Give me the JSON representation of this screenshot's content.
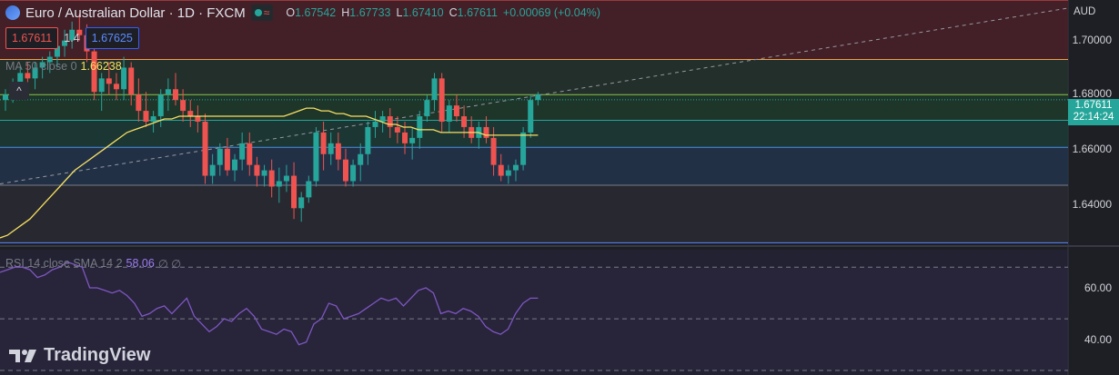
{
  "header": {
    "title": "Euro / Australian Dollar · 1D · FXCM",
    "ohlc": [
      {
        "k": "O",
        "v": "1.67542"
      },
      {
        "k": "H",
        "v": "1.67733"
      },
      {
        "k": "L",
        "v": "1.67410"
      },
      {
        "k": "C",
        "v": "1.67611"
      }
    ],
    "change": "+0.00069 (+0.04%)"
  },
  "trade": {
    "bid": "1.67611",
    "spread": "1.4",
    "ask": "1.67625"
  },
  "ma": {
    "label": "MA 50 close 0",
    "value": "1.66238"
  },
  "rsi": {
    "label": "RSI 14 close SMA 14 2",
    "value": "58.06",
    "extra": "∅ ∅"
  },
  "price_axis": {
    "currency": "AUD",
    "ticks": [
      "1.70000",
      "1.68000",
      "1.66000",
      "1.64000"
    ],
    "last_price": "1.67611",
    "countdown": "22:14:24"
  },
  "rsi_axis": {
    "ticks": [
      "60.00",
      "40.00"
    ]
  },
  "colors": {
    "bull": "#26a69a",
    "bear": "#ef5350",
    "ma": "#f7e061",
    "rsi": "#7e57c2"
  },
  "brand": "TradingView",
  "chart_data": {
    "type": "candlestick",
    "price_range": [
      1.623,
      1.713
    ],
    "candles": [
      [
        1.676,
        1.68,
        1.672,
        1.678
      ],
      [
        1.678,
        1.684,
        1.675,
        1.682
      ],
      [
        1.682,
        1.688,
        1.679,
        1.686
      ],
      [
        1.686,
        1.69,
        1.682,
        1.684
      ],
      [
        1.684,
        1.69,
        1.68,
        1.688
      ],
      [
        1.688,
        1.692,
        1.684,
        1.69
      ],
      [
        1.69,
        1.694,
        1.686,
        1.692
      ],
      [
        1.692,
        1.698,
        1.688,
        1.696
      ],
      [
        1.696,
        1.702,
        1.692,
        1.698
      ],
      [
        1.698,
        1.705,
        1.695,
        1.702
      ],
      [
        1.702,
        1.708,
        1.698,
        1.7
      ],
      [
        1.7,
        1.704,
        1.69,
        1.694
      ],
      [
        1.694,
        1.697,
        1.676,
        1.679
      ],
      [
        1.679,
        1.686,
        1.672,
        1.684
      ],
      [
        1.684,
        1.69,
        1.678,
        1.682
      ],
      [
        1.682,
        1.686,
        1.676,
        1.68
      ],
      [
        1.68,
        1.692,
        1.676,
        1.688
      ],
      [
        1.688,
        1.69,
        1.674,
        1.678
      ],
      [
        1.678,
        1.684,
        1.668,
        1.672
      ],
      [
        1.672,
        1.679,
        1.666,
        1.668
      ],
      [
        1.668,
        1.672,
        1.664,
        1.67
      ],
      [
        1.67,
        1.68,
        1.666,
        1.678
      ],
      [
        1.678,
        1.684,
        1.672,
        1.68
      ],
      [
        1.68,
        1.686,
        1.674,
        1.676
      ],
      [
        1.676,
        1.68,
        1.668,
        1.672
      ],
      [
        1.672,
        1.676,
        1.666,
        1.67
      ],
      [
        1.67,
        1.674,
        1.664,
        1.668
      ],
      [
        1.668,
        1.671,
        1.645,
        1.648
      ],
      [
        1.648,
        1.656,
        1.645,
        1.652
      ],
      [
        1.652,
        1.66,
        1.648,
        1.658
      ],
      [
        1.658,
        1.662,
        1.648,
        1.65
      ],
      [
        1.65,
        1.656,
        1.646,
        1.654
      ],
      [
        1.654,
        1.664,
        1.65,
        1.66
      ],
      [
        1.66,
        1.664,
        1.648,
        1.652
      ],
      [
        1.652,
        1.655,
        1.644,
        1.648
      ],
      [
        1.648,
        1.652,
        1.644,
        1.65
      ],
      [
        1.65,
        1.654,
        1.64,
        1.644
      ],
      [
        1.644,
        1.651,
        1.638,
        1.646
      ],
      [
        1.646,
        1.652,
        1.642,
        1.648
      ],
      [
        1.648,
        1.653,
        1.632,
        1.636
      ],
      [
        1.636,
        1.642,
        1.631,
        1.64
      ],
      [
        1.64,
        1.648,
        1.638,
        1.646
      ],
      [
        1.646,
        1.666,
        1.644,
        1.664
      ],
      [
        1.664,
        1.668,
        1.65,
        1.656
      ],
      [
        1.656,
        1.664,
        1.652,
        1.66
      ],
      [
        1.66,
        1.664,
        1.65,
        1.654
      ],
      [
        1.654,
        1.658,
        1.644,
        1.646
      ],
      [
        1.646,
        1.654,
        1.644,
        1.652
      ],
      [
        1.652,
        1.66,
        1.646,
        1.656
      ],
      [
        1.656,
        1.668,
        1.652,
        1.666
      ],
      [
        1.666,
        1.672,
        1.662,
        1.668
      ],
      [
        1.668,
        1.672,
        1.664,
        1.67
      ],
      [
        1.67,
        1.673,
        1.662,
        1.666
      ],
      [
        1.666,
        1.67,
        1.66,
        1.664
      ],
      [
        1.664,
        1.668,
        1.656,
        1.66
      ],
      [
        1.66,
        1.666,
        1.654,
        1.662
      ],
      [
        1.662,
        1.672,
        1.658,
        1.67
      ],
      [
        1.67,
        1.678,
        1.668,
        1.676
      ],
      [
        1.676,
        1.686,
        1.672,
        1.684
      ],
      [
        1.684,
        1.686,
        1.664,
        1.668
      ],
      [
        1.668,
        1.676,
        1.664,
        1.674
      ],
      [
        1.674,
        1.678,
        1.668,
        1.67
      ],
      [
        1.67,
        1.674,
        1.662,
        1.666
      ],
      [
        1.666,
        1.67,
        1.66,
        1.662
      ],
      [
        1.662,
        1.668,
        1.658,
        1.666
      ],
      [
        1.666,
        1.67,
        1.66,
        1.662
      ],
      [
        1.662,
        1.666,
        1.648,
        1.652
      ],
      [
        1.652,
        1.656,
        1.646,
        1.648
      ],
      [
        1.648,
        1.652,
        1.645,
        1.65
      ],
      [
        1.65,
        1.654,
        1.646,
        1.652
      ],
      [
        1.652,
        1.666,
        1.65,
        1.664
      ],
      [
        1.664,
        1.678,
        1.662,
        1.676
      ],
      [
        1.676,
        1.679,
        1.674,
        1.678
      ]
    ],
    "ma_series": [
      1.625,
      1.626,
      1.628,
      1.63,
      1.632,
      1.635,
      1.638,
      1.641,
      1.644,
      1.647,
      1.65,
      1.652,
      1.654,
      1.656,
      1.658,
      1.66,
      1.662,
      1.664,
      1.665,
      1.666,
      1.667,
      1.668,
      1.669,
      1.669,
      1.67,
      1.67,
      1.67,
      1.67,
      1.67,
      1.67,
      1.67,
      1.67,
      1.67,
      1.67,
      1.67,
      1.67,
      1.67,
      1.67,
      1.67,
      1.671,
      1.672,
      1.673,
      1.673,
      1.672,
      1.672,
      1.671,
      1.671,
      1.67,
      1.67,
      1.67,
      1.669,
      1.668,
      1.667,
      1.667,
      1.666,
      1.666,
      1.665,
      1.665,
      1.665,
      1.664,
      1.664,
      1.664,
      1.664,
      1.664,
      1.664,
      1.663,
      1.663,
      1.663,
      1.663,
      1.663,
      1.663,
      1.663,
      1.663
    ],
    "rsi_series": [
      68,
      69,
      70,
      70,
      69,
      66,
      67,
      69,
      70,
      72,
      71,
      70,
      62,
      62,
      61,
      60,
      61,
      59,
      56,
      51,
      52,
      54,
      55,
      52,
      55,
      58,
      51,
      48,
      45,
      47,
      50,
      49,
      52,
      54,
      51,
      46,
      45,
      44,
      46,
      45,
      40,
      41,
      48,
      50,
      56,
      55,
      50,
      51,
      52,
      54,
      56,
      58,
      57,
      58,
      55,
      58,
      61,
      62,
      60,
      52,
      53,
      52,
      54,
      53,
      51,
      47,
      45,
      44,
      46,
      52,
      56,
      58,
      58
    ],
    "rsi_range": [
      30,
      75
    ]
  }
}
